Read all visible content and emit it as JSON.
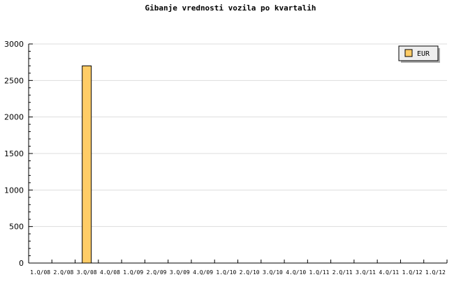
{
  "chart_data": {
    "type": "bar",
    "title": "Gibanje vrednosti vozila po kvartalih",
    "xlabel": "",
    "ylabel": "",
    "categories": [
      "1.Q/08",
      "2.Q/08",
      "3.Q/08",
      "4.Q/08",
      "1.Q/09",
      "2.Q/09",
      "3.Q/09",
      "4.Q/09",
      "1.Q/10",
      "2.Q/10",
      "3.Q/10",
      "4.Q/10",
      "1.Q/11",
      "2.Q/11",
      "3.Q/11",
      "4.Q/11",
      "1.Q/12",
      "1.Q/12"
    ],
    "series": [
      {
        "name": "EUR",
        "color": "#ffcc66",
        "values": [
          0,
          0,
          2700,
          0,
          0,
          0,
          0,
          0,
          0,
          0,
          0,
          0,
          0,
          0,
          0,
          0,
          0,
          0
        ]
      }
    ],
    "ylim": [
      0,
      3000
    ],
    "yticks": [
      0,
      500,
      1000,
      1500,
      2000,
      2500,
      3000
    ],
    "grid": true,
    "legend": "top-right"
  }
}
